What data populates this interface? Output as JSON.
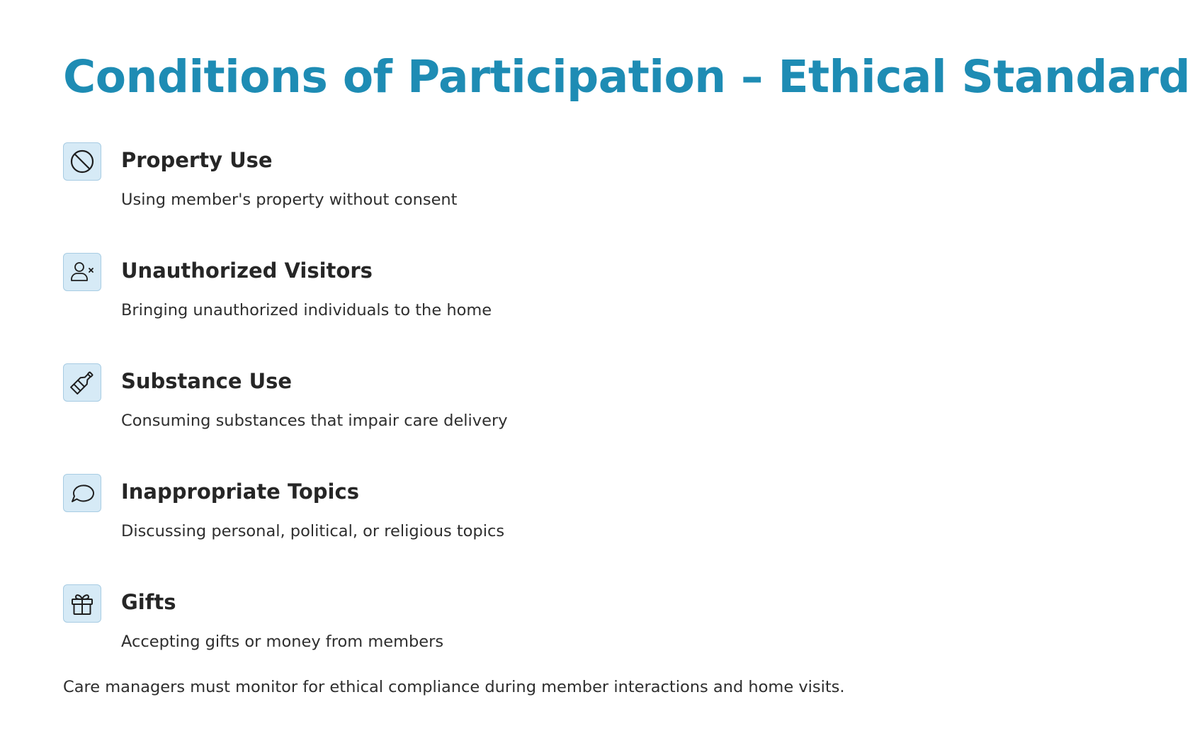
{
  "title": "Conditions of Participation – Ethical Standards",
  "items": [
    {
      "icon": "prohibited-icon",
      "title": "Property Use",
      "description": "Using member's property without consent"
    },
    {
      "icon": "user-x-icon",
      "title": "Unauthorized Visitors",
      "description": "Bringing unauthorized individuals to the home"
    },
    {
      "icon": "bottle-icon",
      "title": "Substance Use",
      "description": "Consuming substances that impair care delivery"
    },
    {
      "icon": "speech-bubble-icon",
      "title": "Inappropriate Topics",
      "description": "Discussing personal, political, or religious topics"
    },
    {
      "icon": "gift-icon",
      "title": "Gifts",
      "description": "Accepting gifts or money from members"
    }
  ],
  "footer_note": "Care managers must monitor for ethical compliance during member interactions and home visits.",
  "colors": {
    "title": "#1e8cb4",
    "icon_background": "#d6eaf6",
    "icon_border": "#a7cce3",
    "text": "#2a2a2a"
  }
}
